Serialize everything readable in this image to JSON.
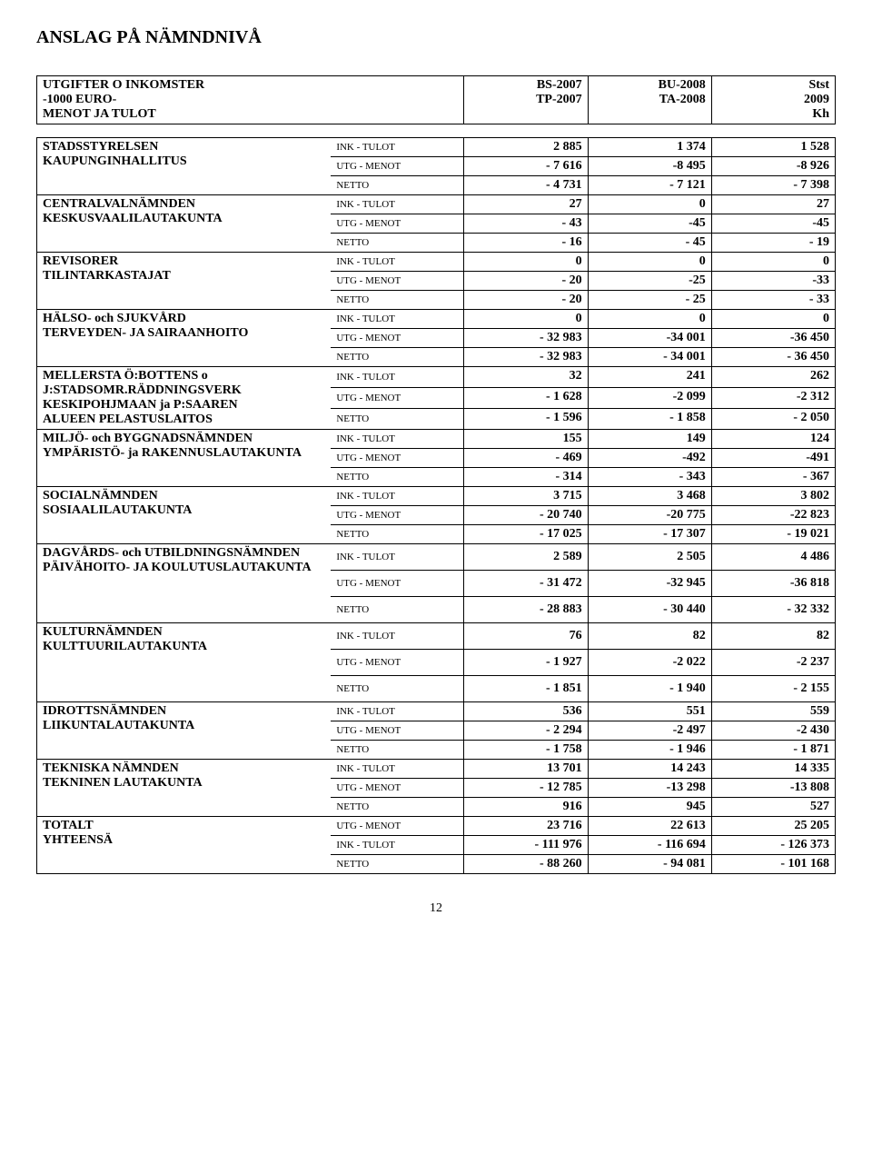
{
  "title": "ANSLAG PÅ NÄMNDNIVÅ",
  "header": {
    "left": [
      "UTGIFTER O  INKOMSTER",
      "-1000 EURO-",
      "MENOT JA TULOT"
    ],
    "c1": [
      "BS-2007",
      "TP-2007"
    ],
    "c2": [
      "BU-2008",
      "TA-2008"
    ],
    "c3": [
      "Stst",
      "2009",
      "Kh"
    ]
  },
  "types": {
    "ink": "INK - TULOT",
    "utg": "UTG - MENOT",
    "net": "NETTO"
  },
  "groups": [
    {
      "label": [
        "STADSSTYRELSEN",
        "KAUPUNGINHALLITUS"
      ],
      "rows": [
        [
          "2 885",
          "1 374",
          "1 528"
        ],
        [
          "- 7 616",
          "-8 495",
          "-8 926"
        ],
        [
          "- 4 731",
          "- 7 121",
          "- 7 398"
        ]
      ]
    },
    {
      "label": [
        "CENTRALVALNÄMNDEN",
        "KESKUSVAALILAUTAKUNTA"
      ],
      "rows": [
        [
          "27",
          "0",
          "27"
        ],
        [
          "- 43",
          "-45",
          "-45"
        ],
        [
          "- 16",
          "- 45",
          "- 19"
        ]
      ]
    },
    {
      "label": [
        "REVISORER",
        "TILINTARKASTAJAT"
      ],
      "rows": [
        [
          "0",
          "0",
          "0"
        ],
        [
          "- 20",
          "-25",
          "-33"
        ],
        [
          "- 20",
          "- 25",
          "- 33"
        ]
      ]
    },
    {
      "label": [
        "HÄLSO- och SJUKVÅRD",
        "TERVEYDEN- JA SAIRAANHOITO"
      ],
      "rows": [
        [
          "0",
          "0",
          "0"
        ],
        [
          "- 32 983",
          "-34 001",
          "-36 450"
        ],
        [
          "- 32 983",
          "- 34 001",
          "- 36 450"
        ]
      ]
    },
    {
      "label": [
        "MELLERSTA Ö:BOTTENS o",
        "J:STADSOMR.RÄDDNINGSVERK",
        "KESKIPOHJMAAN ja P:SAAREN",
        "ALUEEN PELASTUSLAITOS"
      ],
      "rows": [
        [
          "32",
          "241",
          "262"
        ],
        [
          "- 1 628",
          "-2 099",
          "-2 312"
        ],
        [
          "- 1 596",
          "- 1 858",
          "- 2 050"
        ]
      ],
      "labelRowspanExtra": true
    },
    {
      "label": [
        "MILJÖ- och BYGGNADSNÄMNDEN",
        "YMPÄRISTÖ- ja RAKENNUSLAUTAKUNTA"
      ],
      "rows": [
        [
          "155",
          "149",
          "124"
        ],
        [
          "- 469",
          "-492",
          "-491"
        ],
        [
          "- 314",
          "- 343",
          "- 367"
        ]
      ]
    },
    {
      "label": [
        "SOCIALNÄMNDEN",
        "SOSIAALILAUTAKUNTA"
      ],
      "rows": [
        [
          "3 715",
          "3 468",
          "3 802"
        ],
        [
          "- 20 740",
          "-20 775",
          "-22 823"
        ],
        [
          "- 17 025",
          "- 17 307",
          "- 19 021"
        ]
      ]
    },
    {
      "label": [
        "DAGVÅRDS- och UTBILDNINGSNÄMNDEN",
        "PÄIVÄHOITO- JA KOULUTUSLAUTAKUNTA"
      ],
      "rows": [
        [
          "2 589",
          "2 505",
          "4 486"
        ],
        [
          "- 31 472",
          "-32 945",
          "-36 818"
        ],
        [
          "- 28 883",
          "- 30 440",
          "- 32 332"
        ]
      ],
      "tallrows": true
    },
    {
      "label": [
        "KULTURNÄMNDEN",
        "KULTTUURILAUTAKUNTA"
      ],
      "rows": [
        [
          "76",
          "82",
          "82"
        ],
        [
          "- 1 927",
          "-2 022",
          "-2 237"
        ],
        [
          "- 1 851",
          "- 1 940",
          "- 2 155"
        ]
      ],
      "tallrows": true
    },
    {
      "label": [
        "IDROTTSNÄMNDEN",
        "LIIKUNTALAUTAKUNTA"
      ],
      "rows": [
        [
          "536",
          "551",
          "559"
        ],
        [
          "- 2 294",
          "-2 497",
          "-2 430"
        ],
        [
          "- 1 758",
          "- 1 946",
          "- 1 871"
        ]
      ]
    },
    {
      "label": [
        "TEKNISKA NÄMNDEN",
        "TEKNINEN LAUTAKUNTA"
      ],
      "rows": [
        [
          "13 701",
          "14 243",
          "14 335"
        ],
        [
          "- 12 785",
          "-13 298",
          "-13 808"
        ],
        [
          "916",
          "945",
          "527"
        ]
      ]
    },
    {
      "label": [
        "TOTALT",
        "YHTEENSÄ"
      ],
      "types": [
        "utg",
        "ink",
        "net"
      ],
      "rows": [
        [
          "23 716",
          "22 613",
          "25 205"
        ],
        [
          "- 111 976",
          "- 116 694",
          "- 126 373"
        ],
        [
          "- 88 260",
          "- 94 081",
          "- 101 168"
        ]
      ]
    }
  ],
  "pageNumber": "12"
}
